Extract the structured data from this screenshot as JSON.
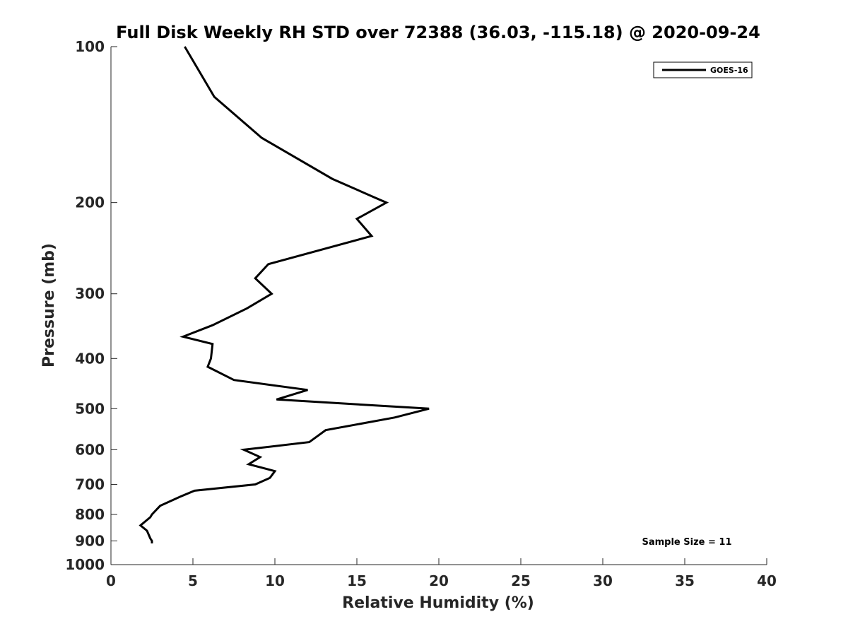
{
  "chart_data": {
    "type": "line",
    "title": "Full Disk Weekly RH STD over 72388 (36.03, -115.18) @ 2020-09-24",
    "xlabel": "Relative Humidity (%)",
    "ylabel": "Pressure (mb)",
    "xlim": [
      0,
      40
    ],
    "ylim": [
      100,
      1000
    ],
    "y_scale": "log",
    "y_reversed": true,
    "x_ticks": [
      "0",
      "5",
      "10",
      "15",
      "20",
      "25",
      "30",
      "35",
      "40"
    ],
    "y_ticks": [
      "100",
      "200",
      "300",
      "400",
      "500",
      "600",
      "700",
      "800",
      "900",
      "1000"
    ],
    "grid": false,
    "legend_position": "top-right",
    "series": [
      {
        "name": "GOES-16",
        "color": "#000000",
        "points": [
          [
            4.5,
            100
          ],
          [
            6.3,
            125
          ],
          [
            9.2,
            150
          ],
          [
            13.5,
            180
          ],
          [
            16.0,
            195
          ],
          [
            16.8,
            200
          ],
          [
            15.0,
            215
          ],
          [
            15.9,
            232
          ],
          [
            9.6,
            263
          ],
          [
            8.8,
            280
          ],
          [
            9.8,
            300
          ],
          [
            8.3,
            320
          ],
          [
            6.2,
            345
          ],
          [
            4.4,
            363
          ],
          [
            6.2,
            375
          ],
          [
            6.1,
            400
          ],
          [
            5.9,
            415
          ],
          [
            7.5,
            440
          ],
          [
            12.0,
            460
          ],
          [
            10.1,
            480
          ],
          [
            19.4,
            500
          ],
          [
            17.3,
            520
          ],
          [
            13.1,
            550
          ],
          [
            12.1,
            580
          ],
          [
            8.1,
            600
          ],
          [
            9.1,
            620
          ],
          [
            8.4,
            640
          ],
          [
            10.0,
            660
          ],
          [
            9.7,
            680
          ],
          [
            8.8,
            700
          ],
          [
            5.1,
            720
          ],
          [
            4.2,
            740
          ],
          [
            3.0,
            770
          ],
          [
            2.5,
            800
          ],
          [
            2.4,
            810
          ],
          [
            1.8,
            840
          ],
          [
            2.2,
            860
          ],
          [
            2.4,
            890
          ],
          [
            2.5,
            900
          ],
          [
            2.5,
            910
          ]
        ]
      }
    ],
    "annotations": [
      "Sample Size = 11"
    ]
  }
}
